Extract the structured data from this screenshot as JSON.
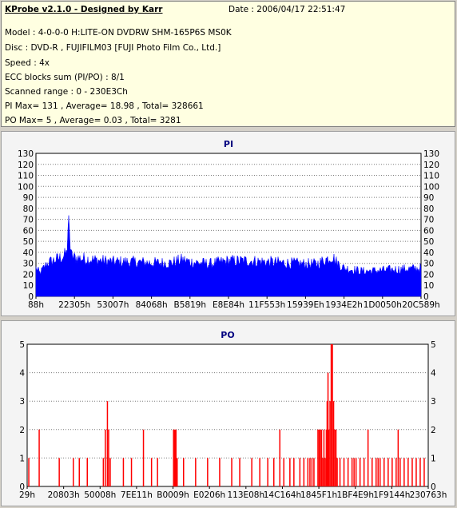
{
  "header": {
    "title": "KProbe v2.1.0 - Designed by Karr",
    "date": "Date : 2006/04/17 22:51:47",
    "model": "Model : 4-0-0-0 H:LITE-ON DVDRW SHM-165P6S MS0K",
    "disc": "Disc : DVD-R , FUJIFILM03 [FUJI Photo Film Co., Ltd.]",
    "speed": "Speed : 4x",
    "ecc": "ECC blocks sum (PI/PO) : 8/1",
    "range": "Scanned range : 0 - 230E3Ch",
    "pi_stats": "PI Max= 131 , Average= 18.98 , Total= 328661",
    "po_stats": "PO Max= 5 , Average= 0.03 , Total= 3281"
  },
  "chart_data": [
    {
      "type": "area",
      "title": "PI",
      "ylim": [
        0,
        130
      ],
      "y_ticks": [
        0,
        10,
        20,
        30,
        40,
        50,
        60,
        70,
        80,
        90,
        100,
        110,
        120,
        130
      ],
      "x_tick_labels": [
        "88h",
        "22305h",
        "53007h",
        "84068h",
        "B5819h",
        "E8E84h",
        "11F553h",
        "15939Eh",
        "1934E2h",
        "1D0050h",
        "20C589h"
      ],
      "color": "#0000ff",
      "grid": "horizontal dotted",
      "profile": [
        [
          0.0,
          27
        ],
        [
          0.01,
          22
        ],
        [
          0.03,
          32
        ],
        [
          0.05,
          35
        ],
        [
          0.07,
          38
        ],
        [
          0.08,
          41
        ],
        [
          0.085,
          74
        ],
        [
          0.09,
          40
        ],
        [
          0.1,
          37
        ],
        [
          0.15,
          35
        ],
        [
          0.2,
          33
        ],
        [
          0.25,
          33
        ],
        [
          0.3,
          32
        ],
        [
          0.35,
          32
        ],
        [
          0.38,
          35
        ],
        [
          0.4,
          33
        ],
        [
          0.45,
          31
        ],
        [
          0.5,
          34
        ],
        [
          0.55,
          34
        ],
        [
          0.6,
          33
        ],
        [
          0.65,
          32
        ],
        [
          0.7,
          31
        ],
        [
          0.73,
          31
        ],
        [
          0.75,
          35
        ],
        [
          0.77,
          38
        ],
        [
          0.78,
          33
        ],
        [
          0.8,
          27
        ],
        [
          0.85,
          24
        ],
        [
          0.9,
          25
        ],
        [
          0.95,
          26
        ],
        [
          1.0,
          27
        ]
      ]
    },
    {
      "type": "bar",
      "title": "PO",
      "ylim": [
        0,
        5
      ],
      "y_ticks": [
        0,
        1,
        2,
        3,
        4,
        5
      ],
      "x_tick_labels": [
        "29h",
        "20803h",
        "50008h",
        "7EE11h",
        "B0009h",
        "E0206h",
        "113E08h",
        "14C164h",
        "1845F1h",
        "1BF4E9h",
        "1F9144h",
        "230763h"
      ],
      "color": "#ff0000",
      "grid": "horizontal dotted",
      "spikes": [
        [
          0.004,
          1
        ],
        [
          0.03,
          2
        ],
        [
          0.08,
          1
        ],
        [
          0.115,
          1
        ],
        [
          0.13,
          1
        ],
        [
          0.15,
          1
        ],
        [
          0.19,
          1
        ],
        [
          0.195,
          2
        ],
        [
          0.2,
          3
        ],
        [
          0.203,
          2
        ],
        [
          0.207,
          1
        ],
        [
          0.24,
          1
        ],
        [
          0.26,
          1
        ],
        [
          0.29,
          2
        ],
        [
          0.31,
          1
        ],
        [
          0.325,
          1
        ],
        [
          0.365,
          2
        ],
        [
          0.368,
          2
        ],
        [
          0.371,
          2
        ],
        [
          0.374,
          1
        ],
        [
          0.39,
          1
        ],
        [
          0.42,
          1
        ],
        [
          0.45,
          1
        ],
        [
          0.48,
          1
        ],
        [
          0.51,
          1
        ],
        [
          0.53,
          1
        ],
        [
          0.56,
          1
        ],
        [
          0.58,
          1
        ],
        [
          0.6,
          1
        ],
        [
          0.615,
          1
        ],
        [
          0.63,
          2
        ],
        [
          0.64,
          1
        ],
        [
          0.655,
          1
        ],
        [
          0.665,
          1
        ],
        [
          0.68,
          1
        ],
        [
          0.69,
          1
        ],
        [
          0.7,
          1
        ],
        [
          0.705,
          1
        ],
        [
          0.71,
          1
        ],
        [
          0.715,
          1
        ],
        [
          0.725,
          2
        ],
        [
          0.728,
          2
        ],
        [
          0.731,
          2
        ],
        [
          0.734,
          2
        ],
        [
          0.737,
          1
        ],
        [
          0.74,
          2
        ],
        [
          0.743,
          1
        ],
        [
          0.746,
          2
        ],
        [
          0.748,
          3
        ],
        [
          0.75,
          4
        ],
        [
          0.752,
          2
        ],
        [
          0.755,
          3
        ],
        [
          0.758,
          5
        ],
        [
          0.761,
          5
        ],
        [
          0.764,
          3
        ],
        [
          0.767,
          2
        ],
        [
          0.77,
          2
        ],
        [
          0.773,
          1
        ],
        [
          0.78,
          1
        ],
        [
          0.79,
          1
        ],
        [
          0.8,
          1
        ],
        [
          0.81,
          1
        ],
        [
          0.815,
          1
        ],
        [
          0.82,
          1
        ],
        [
          0.83,
          1
        ],
        [
          0.84,
          1
        ],
        [
          0.85,
          2
        ],
        [
          0.86,
          1
        ],
        [
          0.87,
          1
        ],
        [
          0.875,
          1
        ],
        [
          0.88,
          1
        ],
        [
          0.89,
          1
        ],
        [
          0.9,
          1
        ],
        [
          0.91,
          1
        ],
        [
          0.92,
          1
        ],
        [
          0.925,
          2
        ],
        [
          0.93,
          1
        ],
        [
          0.94,
          1
        ],
        [
          0.95,
          1
        ],
        [
          0.96,
          1
        ],
        [
          0.97,
          1
        ],
        [
          0.98,
          1
        ],
        [
          0.99,
          1
        ]
      ]
    }
  ]
}
